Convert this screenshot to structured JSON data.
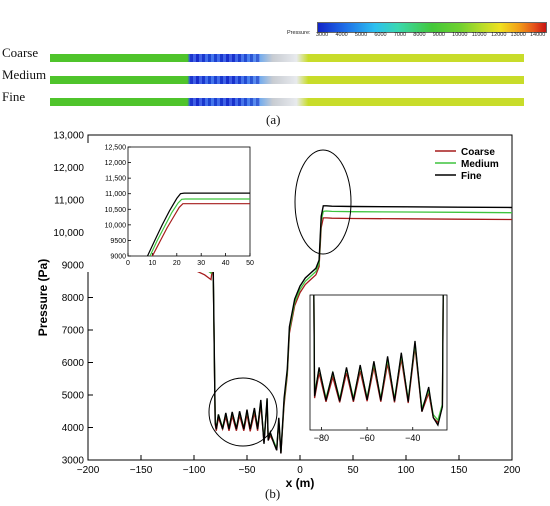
{
  "panel_a": {
    "label": "(a)",
    "colorbar_title": "Pressure:",
    "colorbar_ticks": [
      "3000",
      "4000",
      "5000",
      "6000",
      "7000",
      "8000",
      "9000",
      "10000",
      "11000",
      "12000",
      "13000",
      "14000"
    ],
    "rows": [
      {
        "label": "Coarse"
      },
      {
        "label": "Medium"
      },
      {
        "label": "Fine"
      }
    ],
    "colors": {
      "low": "#1a2fd6",
      "mid": "#4fc42b",
      "high": "#c8dc2a",
      "max": "#d62a14"
    }
  },
  "panel_b": {
    "label": "(b)"
  },
  "chart_data": [
    {
      "type": "line",
      "xlabel": "x (m)",
      "ylabel": "Pressure (Pa)",
      "xlim": [
        -200,
        200
      ],
      "ylim": [
        3000,
        13000
      ],
      "xticks": [
        -200,
        -150,
        -100,
        -50,
        0,
        50,
        100,
        150,
        200
      ],
      "yticks": [
        3000,
        4000,
        5000,
        6000,
        7000,
        8000,
        9000,
        10000,
        11000,
        12000,
        13000
      ],
      "xtick_labels": [
        "−200",
        "−150",
        "−100",
        "−50",
        "0",
        "50",
        "100",
        "150",
        "200"
      ],
      "ytick_labels": [
        "3000",
        "4000",
        "5000",
        "6000",
        "7000",
        "8000",
        "9000",
        "10,000",
        "11,000",
        "12,000",
        "13,000"
      ],
      "legend": "top-right",
      "series": [
        {
          "name": "Coarse",
          "color": "#a61c1c",
          "x": [
            -200,
            -150,
            -120,
            -100,
            -90,
            -84,
            -82,
            -80,
            -79,
            -77,
            -73,
            -70,
            -67,
            -64,
            -60,
            -57,
            -53,
            -50,
            -47,
            -43,
            -40,
            -37,
            -34,
            -31,
            -30,
            -28,
            -25,
            -22,
            -20,
            -18,
            -15,
            -12,
            -10,
            -5,
            0,
            5,
            10,
            15,
            18,
            20,
            22,
            25,
            30,
            50,
            100,
            150,
            200
          ],
          "y": [
            8950,
            8950,
            8930,
            8850,
            8700,
            8550,
            9050,
            4100,
            3900,
            4300,
            3950,
            4330,
            3900,
            4350,
            3900,
            4370,
            3900,
            4400,
            3880,
            4450,
            3900,
            4700,
            3550,
            4800,
            3600,
            3750,
            3550,
            3300,
            4150,
            3200,
            4700,
            5600,
            6900,
            7750,
            8150,
            8400,
            8550,
            8700,
            8950,
            10150,
            10450,
            10450,
            10440,
            10430,
            10420,
            10410,
            10400
          ]
        },
        {
          "name": "Medium",
          "color": "#3ec43e",
          "x": [
            -200,
            -150,
            -120,
            -100,
            -90,
            -84,
            -82,
            -80,
            -79,
            -77,
            -73,
            -70,
            -67,
            -64,
            -60,
            -57,
            -53,
            -50,
            -47,
            -43,
            -40,
            -37,
            -34,
            -31,
            -30,
            -28,
            -25,
            -22,
            -20,
            -18,
            -15,
            -12,
            -10,
            -5,
            0,
            5,
            10,
            15,
            18,
            20,
            22,
            25,
            30,
            50,
            100,
            150,
            200
          ],
          "y": [
            9150,
            9150,
            9120,
            9050,
            8900,
            8750,
            9100,
            4200,
            4000,
            4400,
            4000,
            4430,
            4000,
            4450,
            4000,
            4470,
            4000,
            4500,
            3980,
            4550,
            4000,
            4800,
            3600,
            4850,
            3650,
            3800,
            3600,
            3350,
            4200,
            3250,
            4800,
            5700,
            7000,
            7850,
            8250,
            8500,
            8650,
            8800,
            9050,
            10350,
            10650,
            10660,
            10650,
            10640,
            10630,
            10620,
            10610
          ]
        },
        {
          "name": "Fine",
          "color": "#000000",
          "x": [
            -200,
            -150,
            -120,
            -100,
            -90,
            -84,
            -82,
            -80,
            -79,
            -77,
            -73,
            -70,
            -67,
            -64,
            -60,
            -57,
            -53,
            -50,
            -47,
            -43,
            -40,
            -37,
            -34,
            -31,
            -30,
            -28,
            -25,
            -22,
            -20,
            -18,
            -15,
            -12,
            -10,
            -5,
            0,
            5,
            10,
            15,
            18,
            20,
            22,
            25,
            30,
            50,
            100,
            150,
            200
          ],
          "y": [
            9250,
            9250,
            9220,
            9150,
            9000,
            8850,
            9200,
            4150,
            3950,
            4400,
            3950,
            4450,
            3950,
            4480,
            3950,
            4500,
            3950,
            4550,
            3950,
            4600,
            3950,
            4850,
            3500,
            4900,
            3600,
            3850,
            3550,
            3300,
            4300,
            3200,
            4900,
            5800,
            7100,
            7950,
            8350,
            8600,
            8750,
            8900,
            9150,
            10500,
            10820,
            10820,
            10810,
            10800,
            10790,
            10780,
            10770
          ]
        }
      ]
    },
    {
      "type": "line",
      "xlim": [
        0,
        50
      ],
      "ylim": [
        9000,
        12500
      ],
      "xticks": [
        0,
        10,
        20,
        30,
        40,
        50
      ],
      "yticks": [
        9000,
        9500,
        10000,
        10500,
        11000,
        11500,
        12000,
        12500
      ],
      "xtick_labels": [
        "0",
        "10",
        "20",
        "30",
        "40",
        "50"
      ],
      "ytick_labels": [
        "9000",
        "9500",
        "10,000",
        "10,500",
        "11,000",
        "11,500",
        "12,000",
        "12,500"
      ],
      "series": [
        {
          "name": "Coarse",
          "color": "#a61c1c",
          "x": [
            10,
            13,
            16,
            19,
            21,
            22.5,
            24,
            26,
            30,
            40,
            50
          ],
          "y": [
            9000,
            9450,
            9900,
            10300,
            10560,
            10680,
            10680,
            10680,
            10680,
            10680,
            10680
          ]
        },
        {
          "name": "Medium",
          "color": "#3ec43e",
          "x": [
            9,
            12,
            15,
            18,
            20.5,
            22,
            23.5,
            26,
            30,
            40,
            50
          ],
          "y": [
            9000,
            9500,
            9950,
            10400,
            10700,
            10820,
            10830,
            10830,
            10830,
            10830,
            10830
          ]
        },
        {
          "name": "Fine",
          "color": "#000000",
          "x": [
            8,
            11,
            14,
            17,
            20,
            21.5,
            23,
            25,
            30,
            40,
            50
          ],
          "y": [
            9000,
            9500,
            10000,
            10450,
            10850,
            11000,
            11020,
            11020,
            11020,
            11020,
            11020
          ]
        }
      ]
    },
    {
      "type": "line",
      "xlim": [
        -85,
        -25
      ],
      "xticks": [
        -80,
        -60,
        -40
      ],
      "xtick_labels": [
        "−80",
        "−60",
        "−40"
      ],
      "series": [
        {
          "name": "Coarse",
          "color": "#a61c1c",
          "x": [
            -84,
            -83,
            -81,
            -78,
            -75,
            -72,
            -69,
            -66,
            -63,
            -60,
            -57,
            -54,
            -51,
            -48,
            -45,
            -42,
            -39,
            -36,
            -33,
            -31,
            -29,
            -27,
            -26
          ],
          "y": [
            9000,
            3920,
            4330,
            3860,
            4260,
            3850,
            4330,
            3860,
            4360,
            3870,
            4420,
            3860,
            4480,
            3850,
            4560,
            3840,
            4750,
            3700,
            4000,
            3600,
            3520,
            3780,
            9000
          ]
        },
        {
          "name": "Medium",
          "color": "#3ec43e",
          "x": [
            -84,
            -83,
            -81,
            -78,
            -75,
            -72,
            -69,
            -66,
            -63,
            -60,
            -57,
            -54,
            -51,
            -48,
            -45,
            -42,
            -39,
            -36,
            -33,
            -31,
            -29,
            -27,
            -26
          ],
          "y": [
            9000,
            4000,
            4400,
            3920,
            4330,
            3910,
            4400,
            3920,
            4430,
            3930,
            4480,
            3920,
            4550,
            3910,
            4620,
            3900,
            4800,
            3750,
            4050,
            3650,
            3560,
            3820,
            9000
          ]
        },
        {
          "name": "Fine",
          "color": "#000000",
          "x": [
            -84,
            -83,
            -81,
            -78,
            -75,
            -72,
            -69,
            -66,
            -63,
            -60,
            -57,
            -54,
            -51,
            -48,
            -45,
            -42,
            -39,
            -36,
            -33,
            -31,
            -29,
            -27,
            -26
          ],
          "y": [
            9000,
            3950,
            4420,
            3880,
            4350,
            3870,
            4420,
            3880,
            4460,
            3890,
            4520,
            3880,
            4600,
            3870,
            4660,
            3860,
            4850,
            3700,
            4100,
            3600,
            3480,
            3780,
            9000
          ]
        }
      ]
    }
  ]
}
